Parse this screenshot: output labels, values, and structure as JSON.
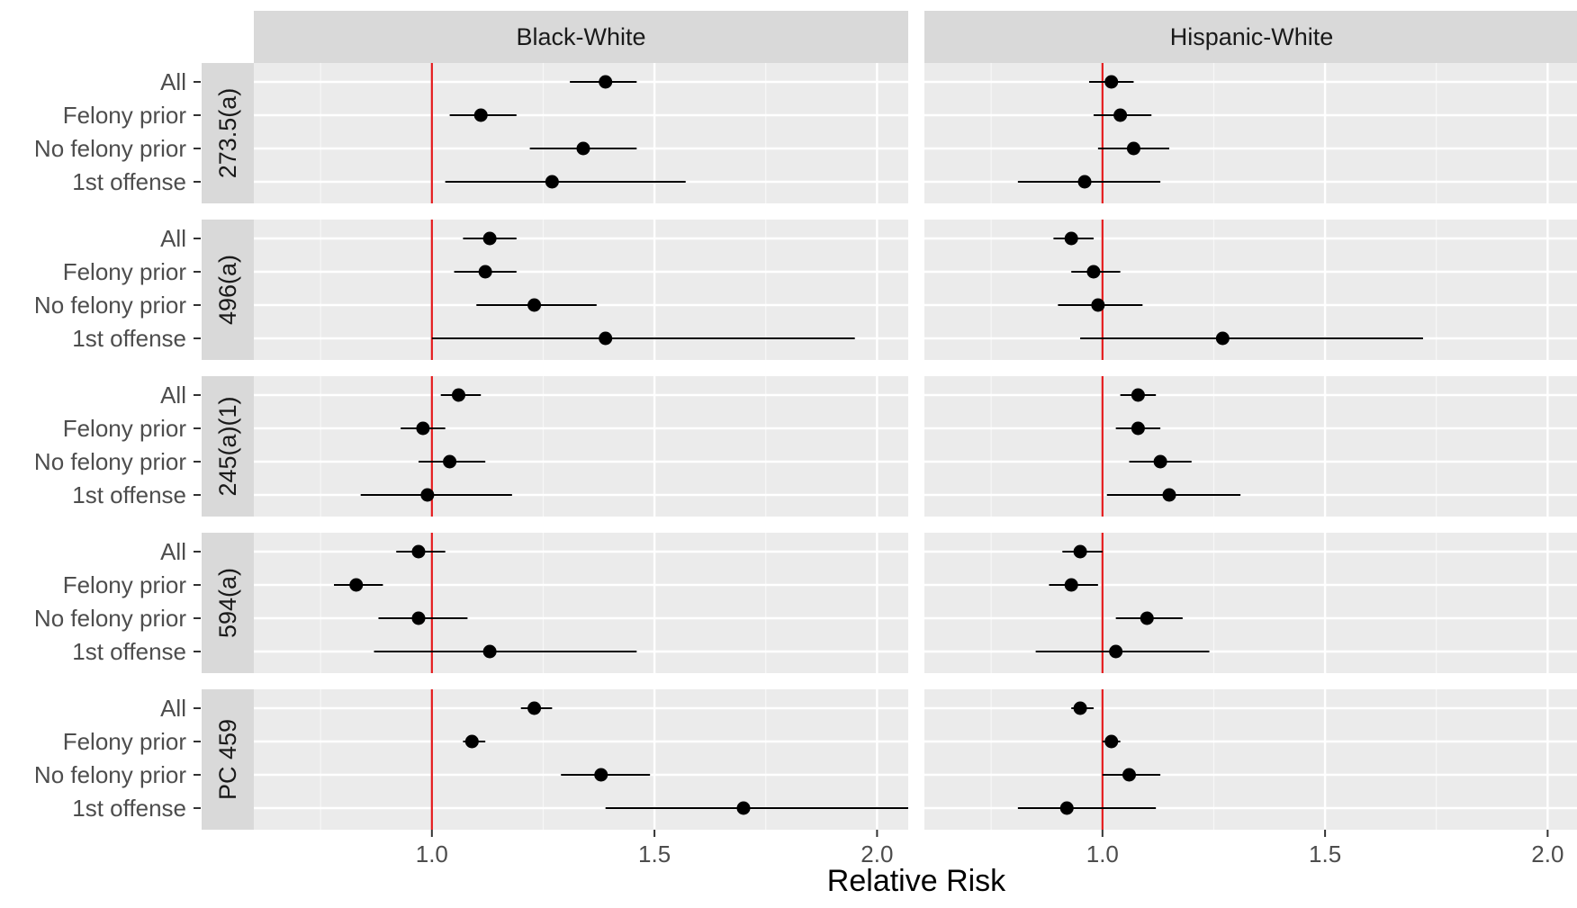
{
  "chart_data": {
    "type": "forest-plot",
    "xlabel": "Relative Risk",
    "xlim": [
      0.6,
      2.07
    ],
    "x_ticks": [
      1.0,
      1.5,
      2.0
    ],
    "x_tick_labels": [
      "1.0",
      "1.5",
      "2.0"
    ],
    "reference_line": 1.0,
    "reference_color": "#e41a1c",
    "grid": true,
    "columns": [
      "Black-White",
      "Hispanic-White"
    ],
    "rows": [
      "273.5(a)",
      "496(a)",
      "245(a)(1)",
      "594(a)",
      "PC 459"
    ],
    "categories": [
      "All",
      "Felony prior",
      "No felony prior",
      "1st offense"
    ],
    "panels": [
      {
        "column": "Black-White",
        "row": "273.5(a)",
        "points": [
          {
            "category": "All",
            "estimate": 1.39,
            "low": 1.31,
            "high": 1.46
          },
          {
            "category": "Felony prior",
            "estimate": 1.11,
            "low": 1.04,
            "high": 1.19
          },
          {
            "category": "No felony prior",
            "estimate": 1.34,
            "low": 1.22,
            "high": 1.46
          },
          {
            "category": "1st offense",
            "estimate": 1.27,
            "low": 1.03,
            "high": 1.57
          }
        ]
      },
      {
        "column": "Hispanic-White",
        "row": "273.5(a)",
        "points": [
          {
            "category": "All",
            "estimate": 1.02,
            "low": 0.97,
            "high": 1.07
          },
          {
            "category": "Felony prior",
            "estimate": 1.04,
            "low": 0.98,
            "high": 1.11
          },
          {
            "category": "No felony prior",
            "estimate": 1.07,
            "low": 0.99,
            "high": 1.15
          },
          {
            "category": "1st offense",
            "estimate": 0.96,
            "low": 0.81,
            "high": 1.13
          }
        ]
      },
      {
        "column": "Black-White",
        "row": "496(a)",
        "points": [
          {
            "category": "All",
            "estimate": 1.13,
            "low": 1.07,
            "high": 1.19
          },
          {
            "category": "Felony prior",
            "estimate": 1.12,
            "low": 1.05,
            "high": 1.19
          },
          {
            "category": "No felony prior",
            "estimate": 1.23,
            "low": 1.1,
            "high": 1.37
          },
          {
            "category": "1st offense",
            "estimate": 1.39,
            "low": 1.0,
            "high": 1.95
          }
        ]
      },
      {
        "column": "Hispanic-White",
        "row": "496(a)",
        "points": [
          {
            "category": "All",
            "estimate": 0.93,
            "low": 0.89,
            "high": 0.98
          },
          {
            "category": "Felony prior",
            "estimate": 0.98,
            "low": 0.93,
            "high": 1.04
          },
          {
            "category": "No felony prior",
            "estimate": 0.99,
            "low": 0.9,
            "high": 1.09
          },
          {
            "category": "1st offense",
            "estimate": 1.27,
            "low": 0.95,
            "high": 1.72
          }
        ]
      },
      {
        "column": "Black-White",
        "row": "245(a)(1)",
        "points": [
          {
            "category": "All",
            "estimate": 1.06,
            "low": 1.02,
            "high": 1.11
          },
          {
            "category": "Felony prior",
            "estimate": 0.98,
            "low": 0.93,
            "high": 1.03
          },
          {
            "category": "No felony prior",
            "estimate": 1.04,
            "low": 0.97,
            "high": 1.12
          },
          {
            "category": "1st offense",
            "estimate": 0.99,
            "low": 0.84,
            "high": 1.18
          }
        ]
      },
      {
        "column": "Hispanic-White",
        "row": "245(a)(1)",
        "points": [
          {
            "category": "All",
            "estimate": 1.08,
            "low": 1.04,
            "high": 1.12
          },
          {
            "category": "Felony prior",
            "estimate": 1.08,
            "low": 1.03,
            "high": 1.13
          },
          {
            "category": "No felony prior",
            "estimate": 1.13,
            "low": 1.06,
            "high": 1.2
          },
          {
            "category": "1st offense",
            "estimate": 1.15,
            "low": 1.01,
            "high": 1.31
          }
        ]
      },
      {
        "column": "Black-White",
        "row": "594(a)",
        "points": [
          {
            "category": "All",
            "estimate": 0.97,
            "low": 0.92,
            "high": 1.03
          },
          {
            "category": "Felony prior",
            "estimate": 0.83,
            "low": 0.78,
            "high": 0.89
          },
          {
            "category": "No felony prior",
            "estimate": 0.97,
            "low": 0.88,
            "high": 1.08
          },
          {
            "category": "1st offense",
            "estimate": 1.13,
            "low": 0.87,
            "high": 1.46
          }
        ]
      },
      {
        "column": "Hispanic-White",
        "row": "594(a)",
        "points": [
          {
            "category": "All",
            "estimate": 0.95,
            "low": 0.91,
            "high": 1.0
          },
          {
            "category": "Felony prior",
            "estimate": 0.93,
            "low": 0.88,
            "high": 0.99
          },
          {
            "category": "No felony prior",
            "estimate": 1.1,
            "low": 1.03,
            "high": 1.18
          },
          {
            "category": "1st offense",
            "estimate": 1.03,
            "low": 0.85,
            "high": 1.24
          }
        ]
      },
      {
        "column": "Black-White",
        "row": "PC 459",
        "points": [
          {
            "category": "All",
            "estimate": 1.23,
            "low": 1.2,
            "high": 1.27
          },
          {
            "category": "Felony prior",
            "estimate": 1.09,
            "low": 1.07,
            "high": 1.12
          },
          {
            "category": "No felony prior",
            "estimate": 1.38,
            "low": 1.29,
            "high": 1.49
          },
          {
            "category": "1st offense",
            "estimate": 1.7,
            "low": 1.39,
            "high": 2.1
          }
        ]
      },
      {
        "column": "Hispanic-White",
        "row": "PC 459",
        "points": [
          {
            "category": "All",
            "estimate": 0.95,
            "low": 0.93,
            "high": 0.98
          },
          {
            "category": "Felony prior",
            "estimate": 1.02,
            "low": 1.0,
            "high": 1.04
          },
          {
            "category": "No felony prior",
            "estimate": 1.06,
            "low": 1.0,
            "high": 1.13
          },
          {
            "category": "1st offense",
            "estimate": 0.92,
            "low": 0.81,
            "high": 1.12
          }
        ]
      }
    ]
  }
}
